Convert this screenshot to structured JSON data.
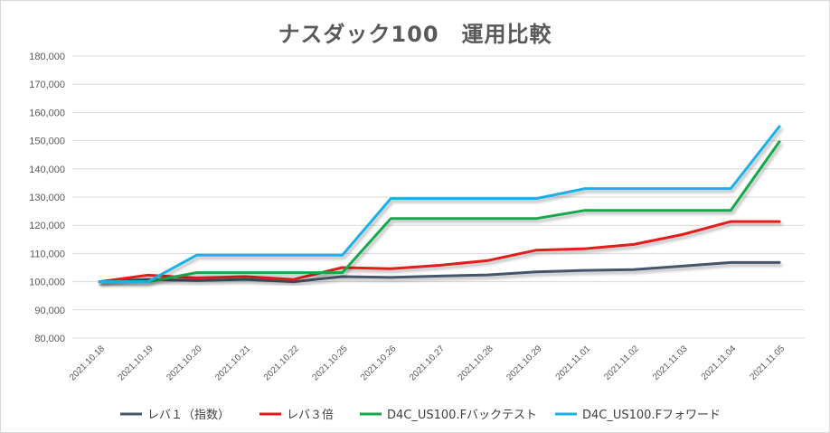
{
  "chart_data": {
    "type": "line",
    "title": "ナスダック100　運用比較",
    "xlabel": "",
    "ylabel": "",
    "ylim": [
      80000,
      180000
    ],
    "yticks": [
      "80,000",
      "90,000",
      "100,000",
      "110,000",
      "120,000",
      "130,000",
      "140,000",
      "150,000",
      "160,000",
      "170,000",
      "180,000"
    ],
    "grid": true,
    "legend_position": "bottom",
    "x": [
      "2021.10.18",
      "2021.10.19",
      "2021.10.20",
      "2021.10.21",
      "2021.10.22",
      "2021.10.25",
      "2021.10.26",
      "2021.10.27",
      "2021.10.28",
      "2021.10.29",
      "2021.11.01",
      "2021.11.02",
      "2021.11.03",
      "2021.11.04",
      "2021.11.05"
    ],
    "series": [
      {
        "name": "レバ１（指数）",
        "color": "#44546a",
        "values": [
          100000,
          100800,
          100400,
          100800,
          100000,
          101800,
          101500,
          102000,
          102400,
          103500,
          104000,
          104300,
          105500,
          106800,
          106800
        ]
      },
      {
        "name": "レバ３倍",
        "color": "#e41a1c",
        "values": [
          100000,
          102300,
          101300,
          101800,
          100800,
          105000,
          104600,
          105800,
          107500,
          111200,
          111700,
          113200,
          116700,
          121300,
          121300
        ]
      },
      {
        "name": "D4C_US100.Fバックテスト",
        "color": "#14a84b",
        "values": [
          100000,
          100000,
          103200,
          103200,
          103200,
          103200,
          122400,
          122400,
          122400,
          122400,
          125300,
          125300,
          125300,
          125300,
          149600
        ]
      },
      {
        "name": "D4C_US100.Fフォワード",
        "color": "#1ab0e8",
        "values": [
          100000,
          100000,
          109400,
          109400,
          109400,
          109400,
          129500,
          129500,
          129500,
          129500,
          133000,
          133000,
          133000,
          133000,
          155000
        ]
      }
    ]
  }
}
